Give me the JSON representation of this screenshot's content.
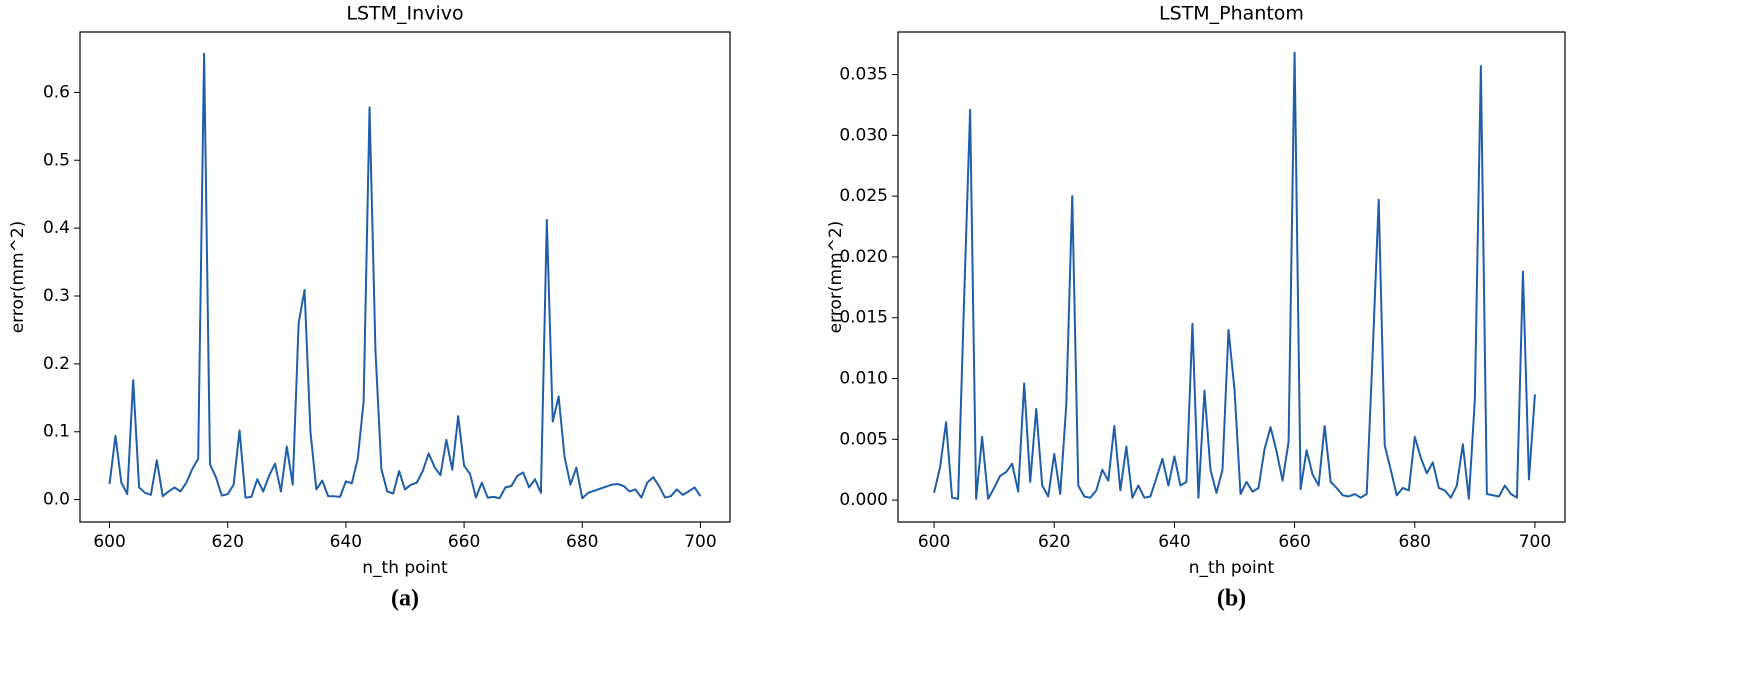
{
  "chart_data": [
    {
      "type": "line",
      "title": "LSTM_Invivo",
      "x_label": "n_th point",
      "y_label": "error(mm^2)",
      "caption": "(a)",
      "color": "#1f5fa8",
      "x": [
        600,
        601,
        602,
        603,
        604,
        605,
        606,
        607,
        608,
        609,
        610,
        611,
        612,
        613,
        614,
        615,
        616,
        617,
        618,
        619,
        620,
        621,
        622,
        623,
        624,
        625,
        626,
        627,
        628,
        629,
        630,
        631,
        632,
        633,
        634,
        635,
        636,
        637,
        638,
        639,
        640,
        641,
        642,
        643,
        644,
        645,
        646,
        647,
        648,
        649,
        650,
        651,
        652,
        653,
        654,
        655,
        656,
        657,
        658,
        659,
        660,
        661,
        662,
        663,
        664,
        665,
        666,
        667,
        668,
        669,
        670,
        671,
        672,
        673,
        674,
        675,
        676,
        677,
        678,
        679,
        680,
        681,
        682,
        683,
        684,
        685,
        686,
        687,
        688,
        689,
        690,
        691,
        692,
        693,
        694,
        695,
        696,
        697,
        698,
        699,
        700
      ],
      "values": [
        0.023,
        0.094,
        0.025,
        0.008,
        0.176,
        0.018,
        0.01,
        0.007,
        0.058,
        0.005,
        0.012,
        0.018,
        0.012,
        0.025,
        0.045,
        0.06,
        0.657,
        0.052,
        0.033,
        0.006,
        0.008,
        0.022,
        0.102,
        0.003,
        0.004,
        0.03,
        0.012,
        0.035,
        0.053,
        0.012,
        0.078,
        0.022,
        0.26,
        0.309,
        0.1,
        0.015,
        0.028,
        0.005,
        0.005,
        0.004,
        0.027,
        0.024,
        0.06,
        0.145,
        0.578,
        0.22,
        0.045,
        0.012,
        0.009,
        0.042,
        0.015,
        0.022,
        0.025,
        0.042,
        0.068,
        0.048,
        0.036,
        0.088,
        0.044,
        0.123,
        0.05,
        0.038,
        0.003,
        0.025,
        0.003,
        0.004,
        0.002,
        0.018,
        0.02,
        0.035,
        0.04,
        0.018,
        0.03,
        0.01,
        0.412,
        0.115,
        0.152,
        0.063,
        0.022,
        0.047,
        0.002,
        0.01,
        0.013,
        0.016,
        0.019,
        0.022,
        0.023,
        0.02,
        0.012,
        0.015,
        0.003,
        0.025,
        0.033,
        0.02,
        0.003,
        0.005,
        0.015,
        0.007,
        0.012,
        0.018,
        0.005
      ],
      "xlim": [
        595,
        705
      ],
      "ylim": [
        -0.033,
        0.689
      ],
      "xticks": [
        600,
        620,
        640,
        660,
        680,
        700
      ],
      "yticks": [
        {
          "value": 0,
          "label": "0.0"
        },
        0.1,
        0.2,
        0.3,
        0.4,
        0.5,
        0.6
      ]
    },
    {
      "type": "line",
      "title": "LSTM_Phantom",
      "x_label": "n_th point",
      "y_label": "error(mm^2)",
      "caption": "(b)",
      "color": "#1f5fa8",
      "x": [
        600,
        601,
        602,
        603,
        604,
        605,
        606,
        607,
        608,
        609,
        610,
        611,
        612,
        613,
        614,
        615,
        616,
        617,
        618,
        619,
        620,
        621,
        622,
        623,
        624,
        625,
        626,
        627,
        628,
        629,
        630,
        631,
        632,
        633,
        634,
        635,
        636,
        637,
        638,
        639,
        640,
        641,
        642,
        643,
        644,
        645,
        646,
        647,
        648,
        649,
        650,
        651,
        652,
        653,
        654,
        655,
        656,
        657,
        658,
        659,
        660,
        661,
        662,
        663,
        664,
        665,
        666,
        667,
        668,
        669,
        670,
        671,
        672,
        673,
        674,
        675,
        676,
        677,
        678,
        679,
        680,
        681,
        682,
        683,
        684,
        685,
        686,
        687,
        688,
        689,
        690,
        691,
        692,
        693,
        694,
        695,
        696,
        697,
        698,
        699,
        700
      ],
      "values": [
        0.0006,
        0.0027,
        0.0064,
        0.0002,
        0.0001,
        0.0165,
        0.0321,
        0.0001,
        0.0052,
        0.0001,
        0.001,
        0.002,
        0.0023,
        0.003,
        0.0007,
        0.0096,
        0.0015,
        0.0075,
        0.0012,
        0.0003,
        0.0038,
        0.0005,
        0.0078,
        0.025,
        0.0012,
        0.0003,
        0.0002,
        0.0008,
        0.0025,
        0.0016,
        0.0061,
        0.0008,
        0.0044,
        0.0002,
        0.0012,
        0.0002,
        0.0003,
        0.0018,
        0.0034,
        0.0012,
        0.0036,
        0.0012,
        0.0015,
        0.0145,
        0.0002,
        0.009,
        0.0025,
        0.0006,
        0.0025,
        0.014,
        0.0091,
        0.0005,
        0.0015,
        0.0007,
        0.001,
        0.0042,
        0.006,
        0.004,
        0.0016,
        0.0048,
        0.0368,
        0.0009,
        0.0041,
        0.0021,
        0.0012,
        0.0061,
        0.0015,
        0.001,
        0.0004,
        0.0003,
        0.0005,
        0.0002,
        0.0005,
        0.0122,
        0.0247,
        0.0045,
        0.0025,
        0.0004,
        0.001,
        0.0008,
        0.0052,
        0.0035,
        0.0022,
        0.0031,
        0.001,
        0.0008,
        0.0002,
        0.0012,
        0.0046,
        0.0001,
        0.0083,
        0.0357,
        0.0005,
        0.0004,
        0.0003,
        0.0012,
        0.0005,
        0.0002,
        0.0188,
        0.0017,
        0.0087
      ],
      "xlim": [
        594,
        705
      ],
      "ylim": [
        -0.0018,
        0.0385
      ],
      "xticks": [
        600,
        620,
        640,
        660,
        680,
        700
      ],
      "yticks": [
        {
          "value": 0,
          "label": "0.000"
        },
        {
          "value": 0.005,
          "label": "0.005"
        },
        {
          "value": 0.01,
          "label": "0.010"
        },
        {
          "value": 0.015,
          "label": "0.015"
        },
        {
          "value": 0.02,
          "label": "0.020"
        },
        {
          "value": 0.025,
          "label": "0.025"
        },
        {
          "value": 0.03,
          "label": "0.030"
        },
        {
          "value": 0.035,
          "label": "0.035"
        }
      ]
    }
  ]
}
